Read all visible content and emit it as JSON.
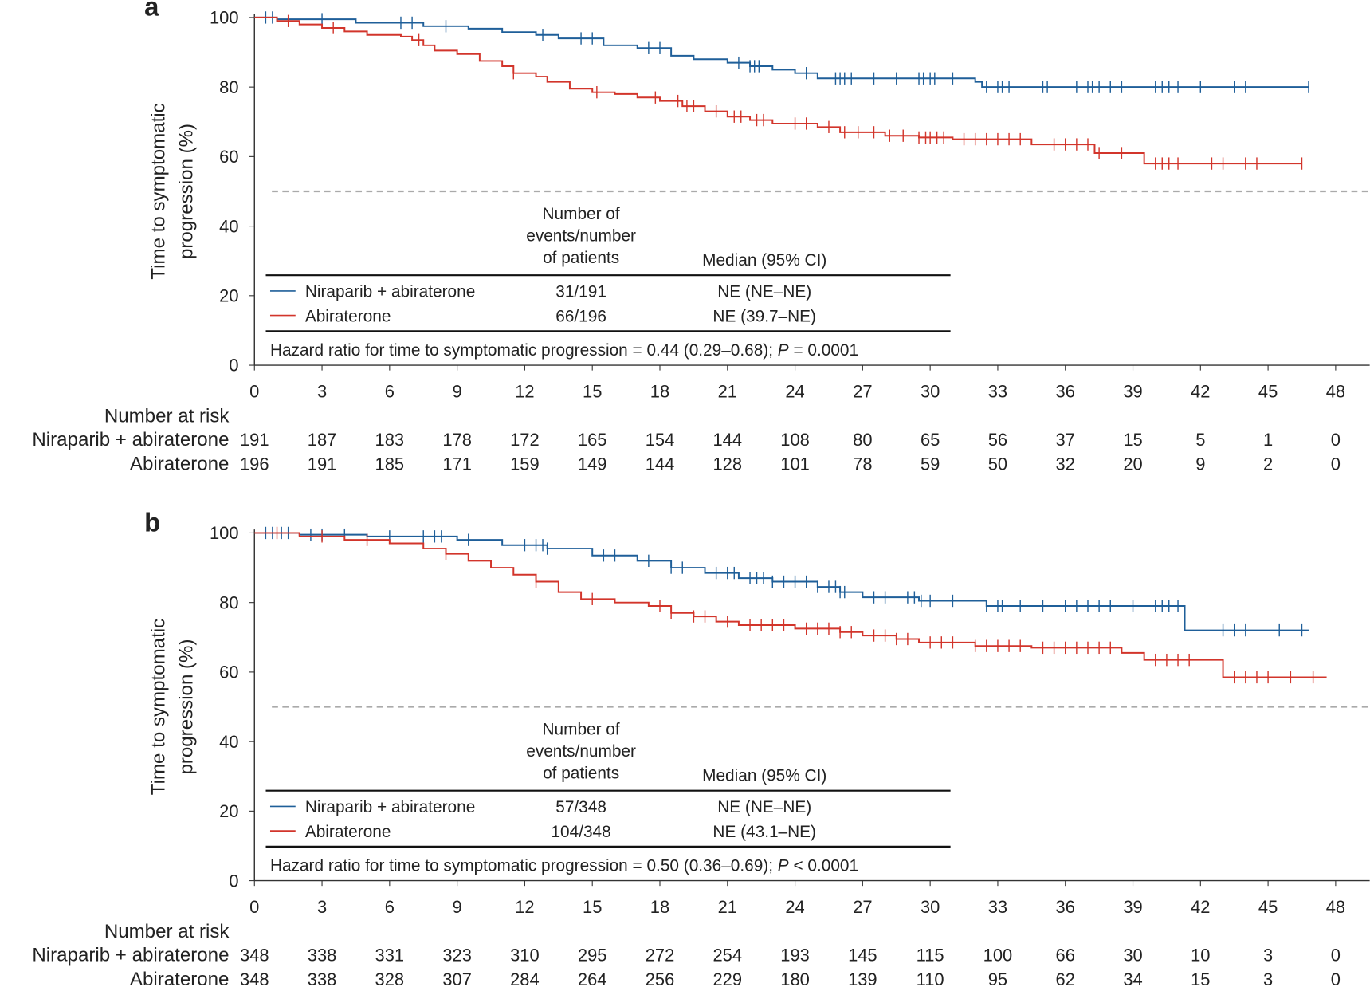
{
  "colors": {
    "niraparib": "#1f5f99",
    "abiraterone": "#d2352b",
    "reference": "#aaaaaa"
  },
  "chart_data": [
    {
      "type": "line",
      "panel_label": "a",
      "ylabel": [
        "Time to symptomatic",
        "progression (%)"
      ],
      "ylim": [
        0,
        100
      ],
      "xlim": [
        0,
        48
      ],
      "yticks": [
        "0",
        "20",
        "40",
        "60",
        "80",
        "100"
      ],
      "xticks": [
        "0",
        "3",
        "6",
        "9",
        "12",
        "15",
        "18",
        "21",
        "24",
        "27",
        "30",
        "33",
        "36",
        "39",
        "42",
        "45",
        "48"
      ],
      "reference_line": 50,
      "table": {
        "col1_header": [
          "Number of",
          "events/number",
          "of patients"
        ],
        "col2_header": "Median (95% CI)",
        "rows": [
          {
            "name": "Niraparib + abiraterone",
            "events": "31/191",
            "median": "NE (NE–NE)"
          },
          {
            "name": "Abiraterone",
            "events": "66/196",
            "median": "NE (39.7–NE)"
          }
        ],
        "hazard": "Hazard ratio for time to symptomatic progression = 0.44 (0.29–0.68); ",
        "p_label": "P",
        "p_value": " = 0.0001"
      },
      "risk_title": "Number at risk",
      "risk": [
        {
          "name": "Niraparib + abiraterone",
          "values": [
            "191",
            "187",
            "183",
            "178",
            "172",
            "165",
            "154",
            "144",
            "108",
            "80",
            "65",
            "56",
            "37",
            "15",
            "5",
            "1",
            "0"
          ]
        },
        {
          "name": "Abiraterone",
          "values": [
            "196",
            "191",
            "185",
            "171",
            "159",
            "149",
            "144",
            "128",
            "101",
            "78",
            "59",
            "50",
            "32",
            "20",
            "9",
            "2",
            "0"
          ]
        }
      ],
      "series": [
        {
          "name": "Niraparib + abiraterone",
          "steps": [
            [
              0,
              100
            ],
            [
              1,
              99.5
            ],
            [
              4.5,
              98.5
            ],
            [
              7.5,
              97.5
            ],
            [
              9.5,
              96.8
            ],
            [
              11,
              95.8
            ],
            [
              12.5,
              95
            ],
            [
              13.5,
              94
            ],
            [
              15.5,
              92
            ],
            [
              17,
              91.2
            ],
            [
              18.5,
              89
            ],
            [
              19.5,
              88
            ],
            [
              21,
              87
            ],
            [
              22,
              86
            ],
            [
              23,
              85
            ],
            [
              24,
              84
            ],
            [
              25,
              82.5
            ],
            [
              32,
              81.5
            ],
            [
              32.3,
              80
            ],
            [
              46.8,
              80
            ]
          ],
          "censored": [
            0.5,
            0.8,
            3,
            6.5,
            7,
            8.5,
            12.8,
            14.5,
            15,
            17.5,
            18,
            21.5,
            22,
            22.2,
            22.4,
            24.5,
            25.8,
            26,
            26.2,
            26.5,
            27.5,
            28.5,
            29.5,
            29.7,
            30,
            30.2,
            31,
            32.5,
            33,
            33.2,
            33.5,
            35,
            35.2,
            36.5,
            37,
            37.2,
            37.5,
            38,
            38.5,
            40,
            40.3,
            40.6,
            41,
            42,
            43.5,
            44,
            46.8
          ]
        },
        {
          "name": "Abiraterone",
          "steps": [
            [
              0,
              100
            ],
            [
              1,
              99
            ],
            [
              2,
              98
            ],
            [
              3,
              97
            ],
            [
              4,
              96
            ],
            [
              5,
              95
            ],
            [
              6.5,
              94.5
            ],
            [
              7,
              93.5
            ],
            [
              7.5,
              92
            ],
            [
              8,
              90.5
            ],
            [
              9,
              89.5
            ],
            [
              10,
              87.5
            ],
            [
              11,
              86
            ],
            [
              11.5,
              84
            ],
            [
              12.5,
              83
            ],
            [
              13,
              81.5
            ],
            [
              14,
              79.5
            ],
            [
              15,
              78.5
            ],
            [
              16,
              78
            ],
            [
              17,
              77
            ],
            [
              18,
              76
            ],
            [
              19,
              74.5
            ],
            [
              20,
              73
            ],
            [
              21,
              71.5
            ],
            [
              22,
              70.5
            ],
            [
              23,
              69.5
            ],
            [
              25,
              68.5
            ],
            [
              26,
              67
            ],
            [
              28,
              66
            ],
            [
              29.5,
              65.5
            ],
            [
              31,
              65
            ],
            [
              34.5,
              63.5
            ],
            [
              37.3,
              61
            ],
            [
              39.5,
              58
            ],
            [
              46.5,
              58
            ]
          ],
          "censored": [
            1.5,
            3.5,
            7.3,
            11.5,
            15.2,
            17.8,
            18.8,
            19.2,
            19.5,
            20.5,
            21.3,
            21.6,
            22.3,
            22.6,
            24,
            24.5,
            25.5,
            26.2,
            26.8,
            27.5,
            28.2,
            28.8,
            29.5,
            29.8,
            30,
            30.3,
            30.6,
            31.5,
            32,
            32.5,
            33,
            33.5,
            34,
            35.5,
            36,
            36.5,
            37,
            37.5,
            38.5,
            40,
            40.3,
            40.6,
            41,
            42.5,
            43,
            44,
            44.5,
            46.5
          ]
        }
      ]
    },
    {
      "type": "line",
      "panel_label": "b",
      "ylabel": [
        "Time to symptomatic",
        "progression (%)"
      ],
      "ylim": [
        0,
        100
      ],
      "xlim": [
        0,
        48
      ],
      "yticks": [
        "0",
        "20",
        "40",
        "60",
        "80",
        "100"
      ],
      "xticks": [
        "0",
        "3",
        "6",
        "9",
        "12",
        "15",
        "18",
        "21",
        "24",
        "27",
        "30",
        "33",
        "36",
        "39",
        "42",
        "45",
        "48"
      ],
      "reference_line": 50,
      "table": {
        "col1_header": [
          "Number of",
          "events/number",
          "of patients"
        ],
        "col2_header": "Median (95% CI)",
        "rows": [
          {
            "name": "Niraparib + abiraterone",
            "events": "57/348",
            "median": "NE (NE–NE)"
          },
          {
            "name": "Abiraterone",
            "events": "104/348",
            "median": "NE (43.1–NE)"
          }
        ],
        "hazard": "Hazard ratio for time to symptomatic progression = 0.50 (0.36–0.69); ",
        "p_label": "P",
        "p_value": " < 0.0001"
      },
      "risk_title": "Number at risk",
      "risk": [
        {
          "name": "Niraparib + abiraterone",
          "values": [
            "348",
            "338",
            "331",
            "323",
            "310",
            "295",
            "272",
            "254",
            "193",
            "145",
            "115",
            "100",
            "66",
            "30",
            "10",
            "3",
            "0"
          ]
        },
        {
          "name": "Abiraterone",
          "values": [
            "348",
            "338",
            "328",
            "307",
            "284",
            "264",
            "256",
            "229",
            "180",
            "139",
            "110",
            "95",
            "62",
            "34",
            "15",
            "3",
            "0"
          ]
        }
      ],
      "series": [
        {
          "name": "Niraparib + abiraterone",
          "steps": [
            [
              0,
              100
            ],
            [
              2,
              99.5
            ],
            [
              5,
              99
            ],
            [
              9,
              98
            ],
            [
              11,
              96.5
            ],
            [
              13,
              95.5
            ],
            [
              15,
              93.5
            ],
            [
              17,
              92
            ],
            [
              18.5,
              90
            ],
            [
              20,
              88.5
            ],
            [
              21.5,
              87
            ],
            [
              23,
              86
            ],
            [
              25,
              84.5
            ],
            [
              26,
              83
            ],
            [
              27,
              81.5
            ],
            [
              29.5,
              80.5
            ],
            [
              32.5,
              79
            ],
            [
              41.3,
              79
            ],
            [
              41.3,
              72
            ],
            [
              46.8,
              72
            ]
          ],
          "censored": [
            0.5,
            0.8,
            1.2,
            1.5,
            2.5,
            3,
            4,
            6,
            7.5,
            8,
            8.3,
            9.5,
            12,
            12.5,
            12.8,
            13,
            15.5,
            16,
            17.5,
            18.5,
            19,
            20.5,
            21,
            21.3,
            22,
            22.3,
            22.6,
            23,
            23.5,
            24,
            24.5,
            25,
            25.5,
            25.8,
            26,
            26.2,
            27.5,
            28,
            29,
            29.3,
            29.6,
            30,
            31,
            32.5,
            33,
            33.2,
            34,
            35,
            36,
            36.5,
            37,
            37.5,
            38,
            39,
            40,
            40.3,
            40.6,
            41,
            43,
            43.5,
            44,
            45.5,
            46.5
          ]
        },
        {
          "name": "Abiraterone",
          "steps": [
            [
              0,
              100
            ],
            [
              2,
              99
            ],
            [
              4,
              98
            ],
            [
              6,
              97
            ],
            [
              7.5,
              95.5
            ],
            [
              8.5,
              94
            ],
            [
              9.5,
              92
            ],
            [
              10.5,
              90
            ],
            [
              11.5,
              88
            ],
            [
              12.5,
              86
            ],
            [
              13.5,
              83
            ],
            [
              14.5,
              81
            ],
            [
              16,
              80
            ],
            [
              17.5,
              79
            ],
            [
              18.5,
              77
            ],
            [
              19.5,
              76
            ],
            [
              20.5,
              74.5
            ],
            [
              21.5,
              73.5
            ],
            [
              24,
              72.5
            ],
            [
              26,
              71.5
            ],
            [
              27,
              70.5
            ],
            [
              28.5,
              69.5
            ],
            [
              29.5,
              68.5
            ],
            [
              32,
              67.5
            ],
            [
              34.5,
              67
            ],
            [
              38.5,
              65.5
            ],
            [
              39.5,
              63.5
            ],
            [
              43,
              58.5
            ],
            [
              47.6,
              58.5
            ]
          ],
          "censored": [
            1,
            3,
            5,
            8.5,
            12.5,
            15,
            18,
            18.5,
            19.5,
            20,
            21,
            22,
            22.5,
            23,
            23.5,
            24.5,
            25,
            25.5,
            26,
            26.5,
            27.5,
            28,
            28.5,
            29,
            30,
            30.5,
            31,
            32,
            32.5,
            33,
            33.5,
            34,
            35,
            35.5,
            36,
            36.5,
            37,
            37.5,
            38,
            40,
            40.5,
            41,
            41.5,
            43.5,
            44,
            44.5,
            45,
            46,
            47
          ]
        }
      ]
    }
  ]
}
